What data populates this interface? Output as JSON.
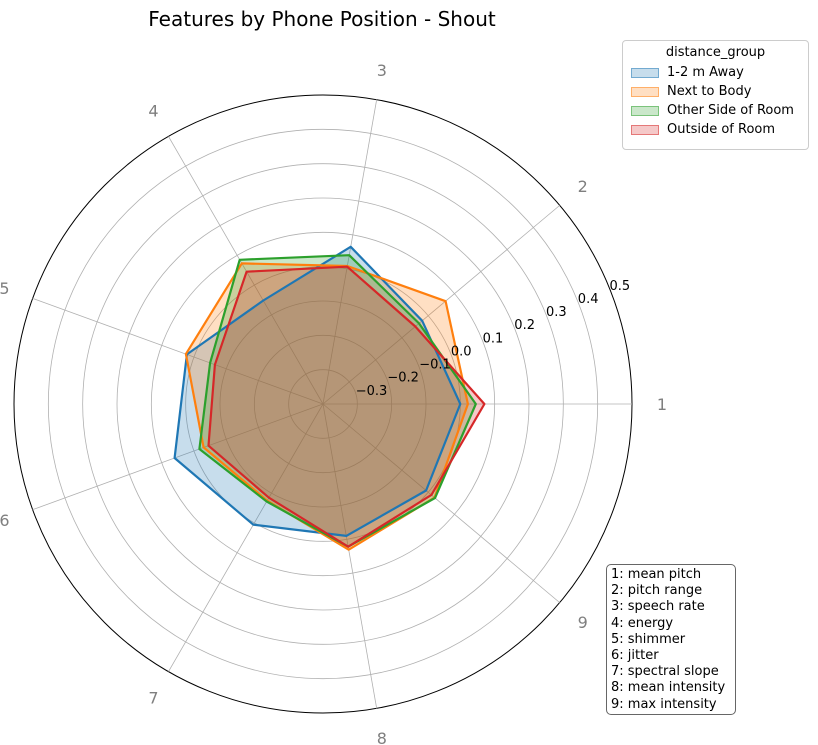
{
  "chart_data": {
    "type": "radar",
    "title": "Features by Phone Position - Shout",
    "axes": [
      "1",
      "2",
      "3",
      "4",
      "5",
      "6",
      "7",
      "8",
      "9"
    ],
    "r_ticks": [
      -0.3,
      -0.2,
      -0.1,
      0.0,
      0.1,
      0.2,
      0.3,
      0.4,
      0.5
    ],
    "r_tick_labels": [
      "−0.3",
      "−0.2",
      "−0.1",
      "0.0",
      "0.1",
      "0.2",
      "0.3",
      "0.4",
      "0.5"
    ],
    "rlim": [
      -0.4,
      0.5
    ],
    "legend": {
      "title": "distance_group",
      "placement": "upper-right-outside"
    },
    "series": [
      {
        "name": "1-2 m Away",
        "color": "#1f77b4",
        "values": [
          0.0,
          -0.023,
          0.065,
          -0.052,
          0.022,
          0.06,
          0.006,
          -0.01,
          -0.008
        ]
      },
      {
        "name": "Next to Body",
        "color": "#ff7f0e",
        "values": [
          0.022,
          0.066,
          0.008,
          0.073,
          0.025,
          -0.03,
          -0.075,
          0.031,
          0.024
        ]
      },
      {
        "name": "Other Side of Room",
        "color": "#2ca02c",
        "values": [
          0.045,
          -0.035,
          0.04,
          0.085,
          -0.05,
          -0.017,
          -0.072,
          0.022,
          0.026
        ]
      },
      {
        "name": "Outside of Room",
        "color": "#d62728",
        "values": [
          0.07,
          -0.049,
          0.006,
          0.045,
          -0.065,
          -0.045,
          -0.085,
          0.022,
          0.012
        ]
      }
    ],
    "grid": true
  },
  "feature_key": [
    "1: mean pitch",
    "2: pitch range",
    "3: speech rate",
    "4: energy",
    "5: shimmer",
    "6: jitter",
    "7: spectral slope",
    "8: mean intensity",
    "9: max intensity"
  ]
}
